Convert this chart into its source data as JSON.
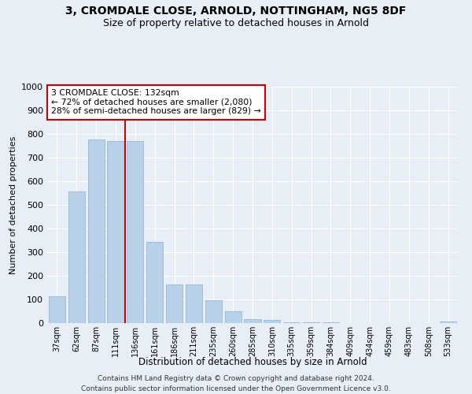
{
  "title1": "3, CROMDALE CLOSE, ARNOLD, NOTTINGHAM, NG5 8DF",
  "title2": "Size of property relative to detached houses in Arnold",
  "xlabel": "Distribution of detached houses by size in Arnold",
  "ylabel": "Number of detached properties",
  "categories": [
    "37sqm",
    "62sqm",
    "87sqm",
    "111sqm",
    "136sqm",
    "161sqm",
    "186sqm",
    "211sqm",
    "235sqm",
    "260sqm",
    "285sqm",
    "310sqm",
    "335sqm",
    "359sqm",
    "384sqm",
    "409sqm",
    "434sqm",
    "459sqm",
    "483sqm",
    "508sqm",
    "533sqm"
  ],
  "values": [
    113,
    557,
    778,
    769,
    769,
    342,
    163,
    163,
    97,
    50,
    18,
    13,
    4,
    4,
    4,
    1,
    0,
    0,
    0,
    0,
    8
  ],
  "bar_color": "#b8d0e8",
  "bar_edge_color": "#8ab0cc",
  "vline_x_index": 3,
  "vline_color": "#cc0000",
  "annotation_line1": "3 CROMDALE CLOSE: 132sqm",
  "annotation_line2": "← 72% of detached houses are smaller (2,080)",
  "annotation_line3": "28% of semi-detached houses are larger (829) →",
  "annotation_box_edge": "#cc0000",
  "background_color": "#e8eef5",
  "grid_color": "#ffffff",
  "ylim": [
    0,
    1000
  ],
  "yticks": [
    0,
    100,
    200,
    300,
    400,
    500,
    600,
    700,
    800,
    900,
    1000
  ],
  "footer": "Contains HM Land Registry data © Crown copyright and database right 2024.\nContains public sector information licensed under the Open Government Licence v3.0."
}
